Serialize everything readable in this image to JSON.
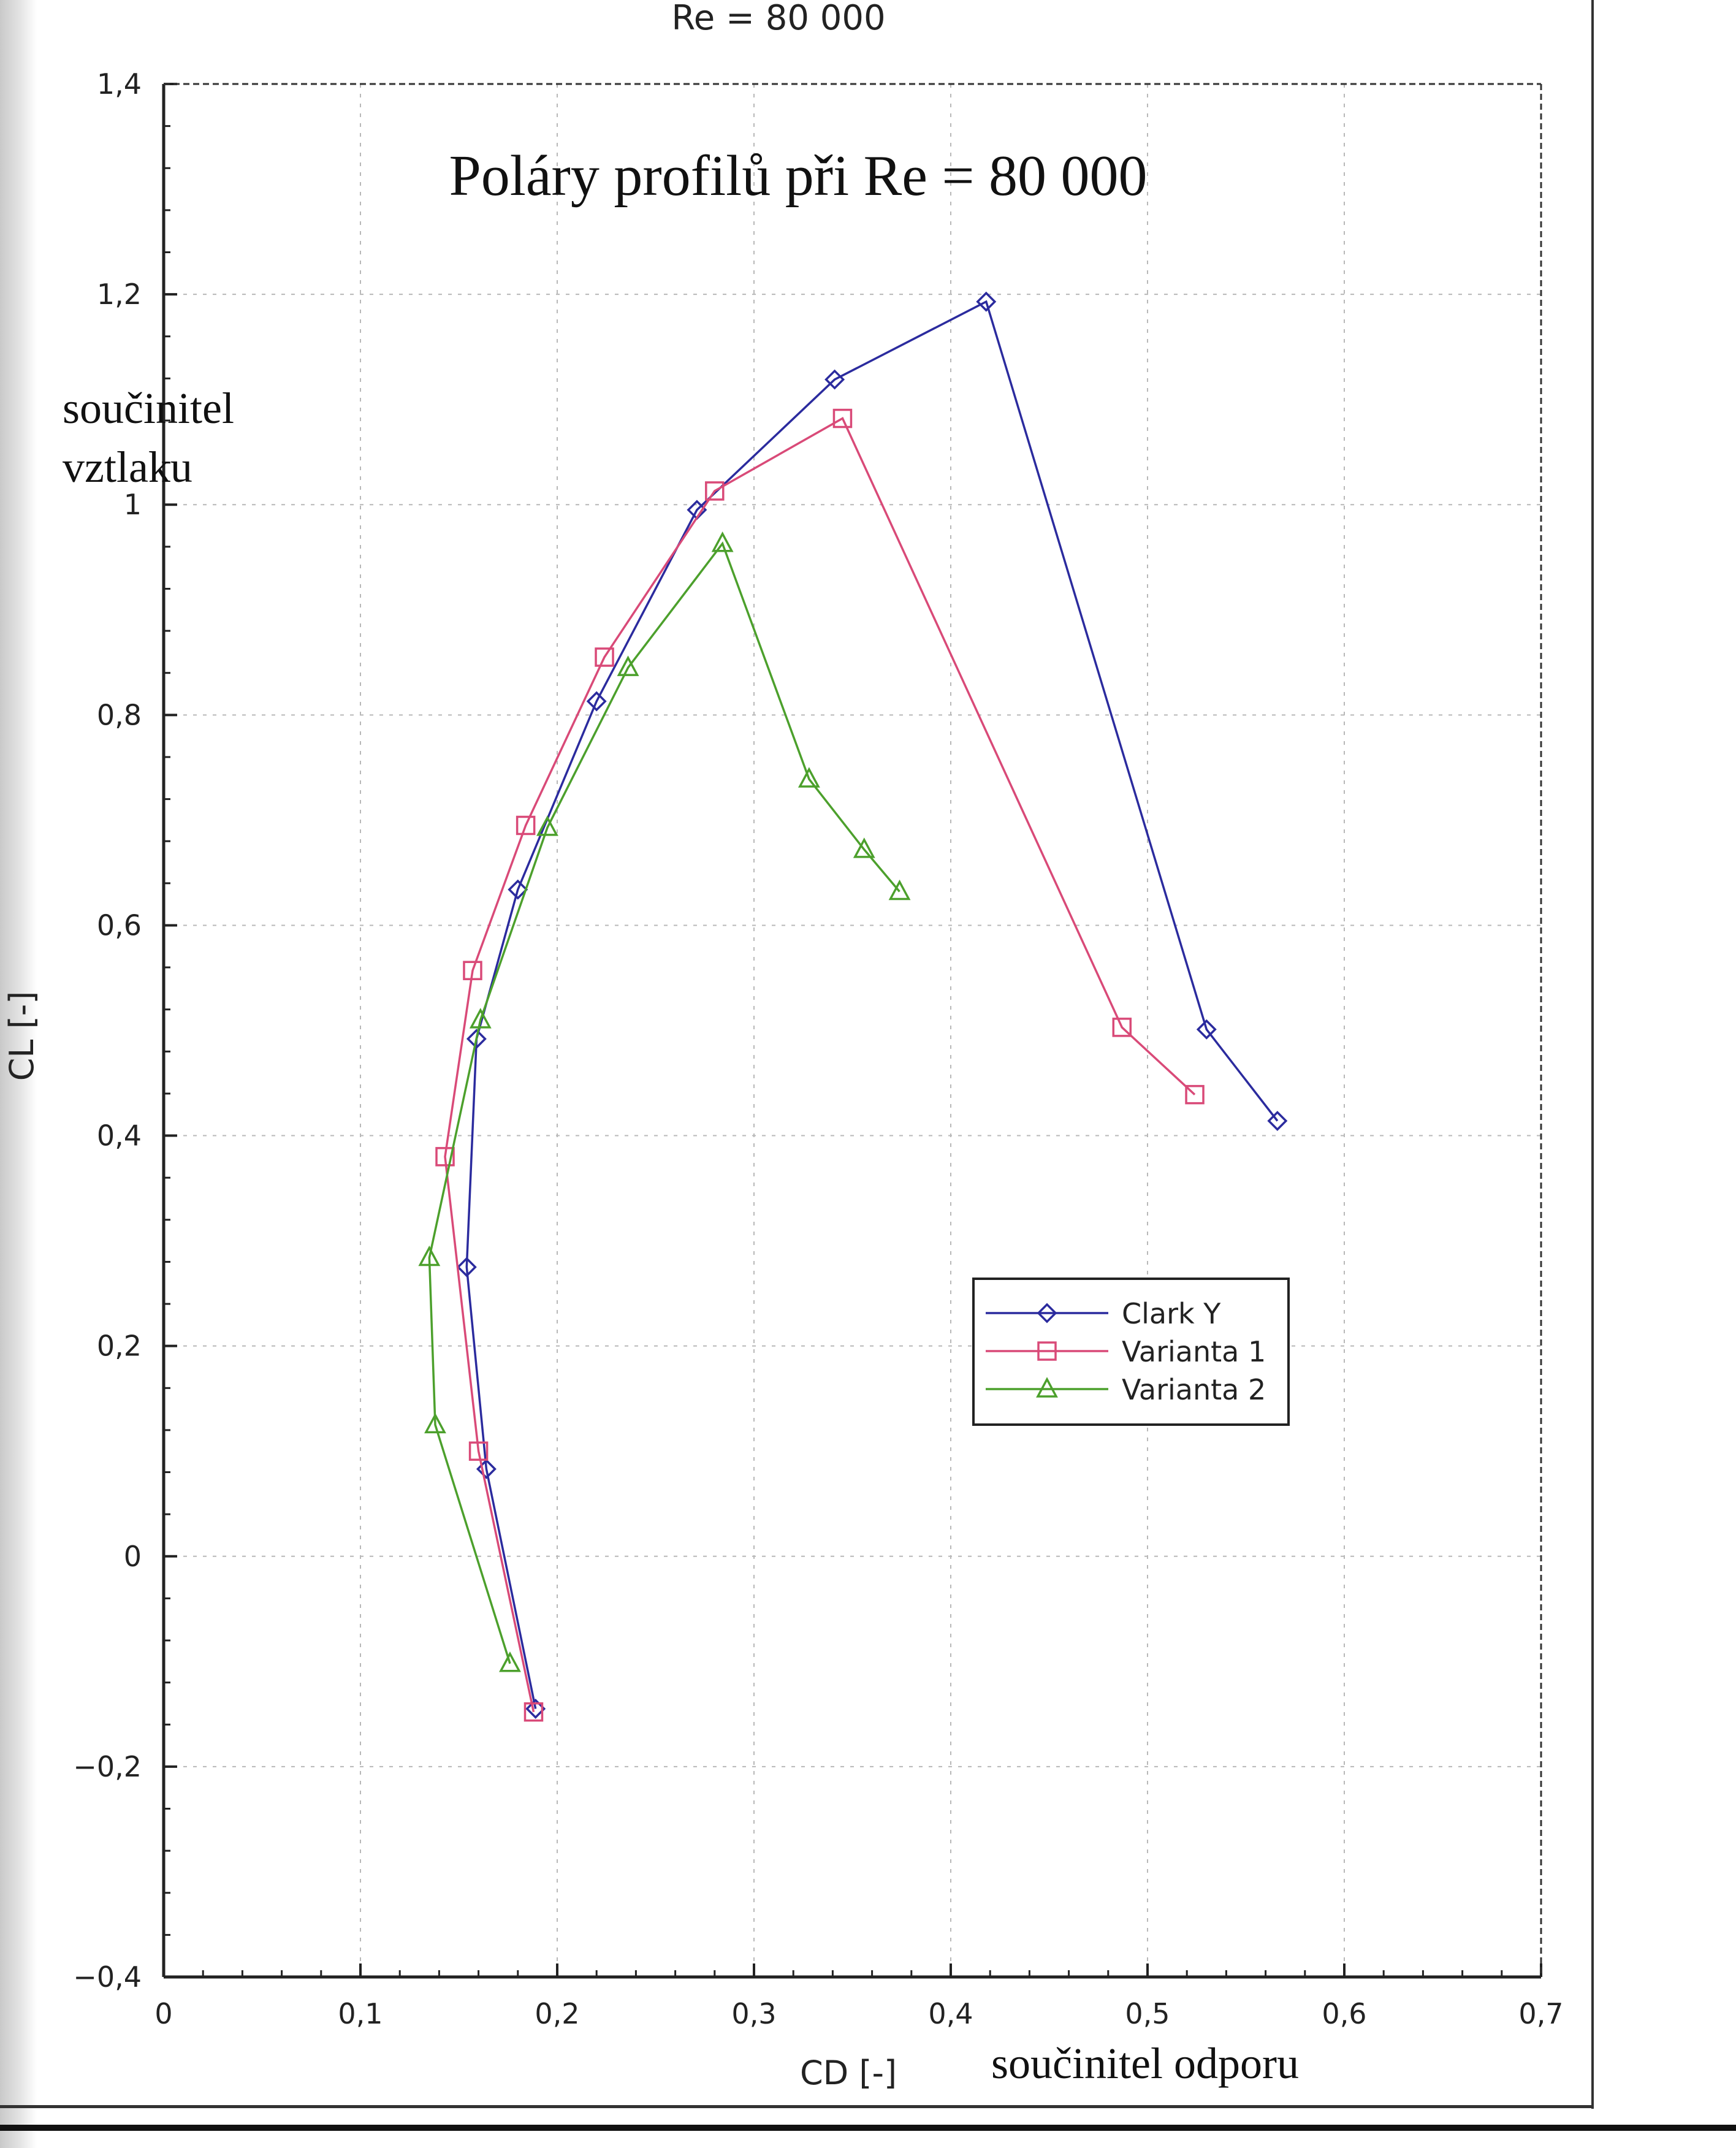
{
  "chart_data": {
    "type": "line",
    "title": "Re = 80 000",
    "subtitle": "Poláry profilů při Re = 80 000",
    "xlabel": "CD [-]",
    "ylabel": "CL [-]",
    "xlabel_note": "součinitel odporu",
    "ylabel_note_lines": [
      "součinitel",
      "vztlaku"
    ],
    "xlim": [
      0,
      0.7
    ],
    "ylim": [
      -0.4,
      1.4
    ],
    "xticks": [
      0,
      0.1,
      0.2,
      0.3,
      0.4,
      0.5,
      0.6,
      0.7
    ],
    "yticks": [
      -0.4,
      -0.2,
      0,
      0.2,
      0.4,
      0.6,
      0.8,
      1,
      1.2,
      1.4
    ],
    "xtick_labels": [
      "0",
      "0,1",
      "0,2",
      "0,3",
      "0,4",
      "0,5",
      "0,6",
      "0,7"
    ],
    "ytick_labels": [
      "−0,4",
      "−0,2",
      "0",
      "0,2",
      "0,4",
      "0,6",
      "0,8",
      "1",
      "1,2",
      "1,4"
    ],
    "grid": true,
    "legend_position": "lower-right",
    "series": [
      {
        "name": "Clark Y",
        "marker": "diamond",
        "color": "#2b2b9e",
        "x": [
          0.189,
          0.164,
          0.154,
          0.159,
          0.18,
          0.22,
          0.271,
          0.341,
          0.418,
          0.53,
          0.566
        ],
        "y": [
          -0.145,
          0.083,
          0.275,
          0.492,
          0.634,
          0.813,
          0.995,
          1.119,
          1.193,
          0.501,
          0.414
        ]
      },
      {
        "name": "Varianta 1",
        "marker": "square",
        "color": "#d94a78",
        "x": [
          0.188,
          0.16,
          0.143,
          0.157,
          0.184,
          0.224,
          0.28,
          0.345,
          0.487,
          0.524
        ],
        "y": [
          -0.148,
          0.1,
          0.38,
          0.557,
          0.695,
          0.855,
          1.013,
          1.082,
          0.503,
          0.439
        ]
      },
      {
        "name": "Varianta 2",
        "marker": "triangle",
        "color": "#4ca02c",
        "x": [
          0.176,
          0.138,
          0.135,
          0.161,
          0.195,
          0.236,
          0.284,
          0.328,
          0.356,
          0.374
        ],
        "y": [
          -0.102,
          0.125,
          0.284,
          0.51,
          0.693,
          0.845,
          0.963,
          0.739,
          0.672,
          0.632
        ]
      }
    ]
  }
}
